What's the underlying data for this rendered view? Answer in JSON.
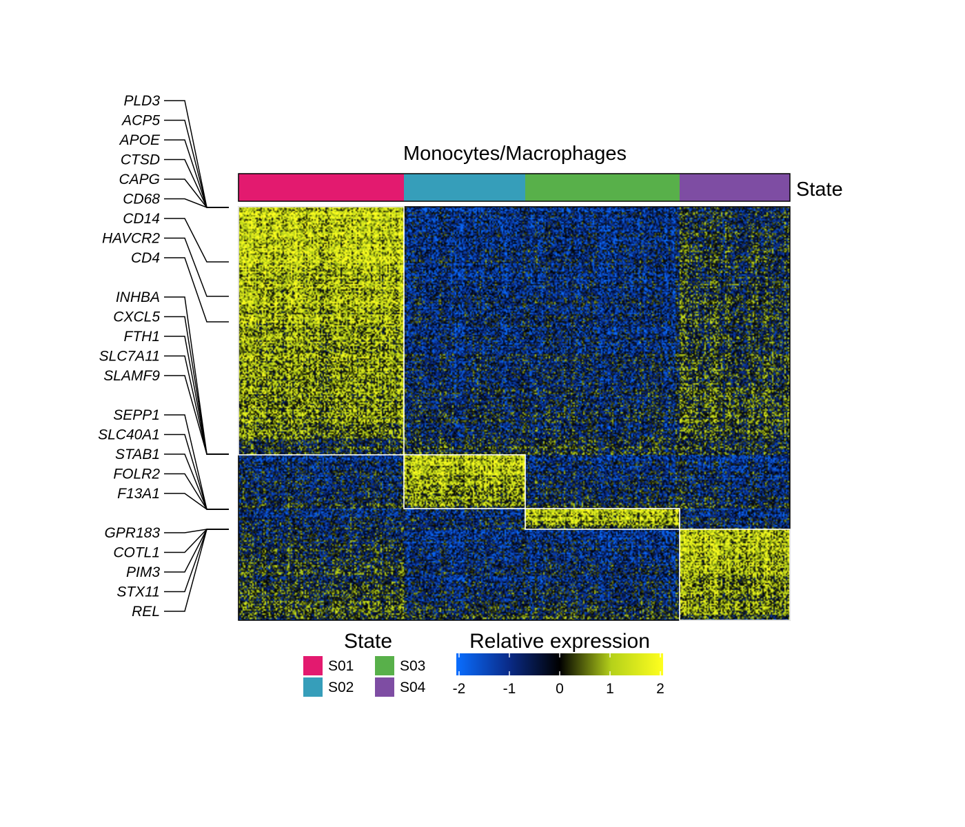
{
  "chart_data": {
    "type": "heatmap",
    "title": "Monocytes/Macrophages",
    "annotation_label": "State",
    "states": [
      {
        "name": "S01",
        "color": "#E31A6F",
        "fraction": 0.3
      },
      {
        "name": "S02",
        "color": "#369EBA",
        "fraction": 0.22
      },
      {
        "name": "S03",
        "color": "#58B04A",
        "fraction": 0.28
      },
      {
        "name": "S04",
        "color": "#7E4DA3",
        "fraction": 0.2
      }
    ],
    "gene_clusters": [
      {
        "state": "S01",
        "row_fraction": 0.6,
        "genes": [
          "PLD3",
          "ACP5",
          "APOE",
          "CTSD",
          "CAPG",
          "CD68",
          "CD14",
          "HAVCR2",
          "CD4"
        ]
      },
      {
        "state": "S02",
        "row_fraction": 0.13,
        "genes": [
          "INHBA",
          "CXCL5",
          "FTH1",
          "SLC7A11",
          "SLAMF9"
        ]
      },
      {
        "state": "S03",
        "row_fraction": 0.05,
        "genes": [
          "SEPP1",
          "SLC40A1",
          "STAB1",
          "FOLR2",
          "F13A1"
        ]
      },
      {
        "state": "S04",
        "row_fraction": 0.22,
        "genes": [
          "GPR183",
          "COTL1",
          "PIM3",
          "STX11",
          "REL"
        ]
      }
    ],
    "color_scale": {
      "title": "Relative expression",
      "min": -2,
      "max": 2,
      "ticks": [
        "-2",
        "-1",
        "0",
        "1",
        "2"
      ],
      "colors": [
        "#0A6EFF",
        "#0A2C8A",
        "#000000",
        "#B5D11A",
        "#FFFF1F"
      ]
    },
    "legend": {
      "state_title": "State",
      "placement": "bottom"
    }
  }
}
